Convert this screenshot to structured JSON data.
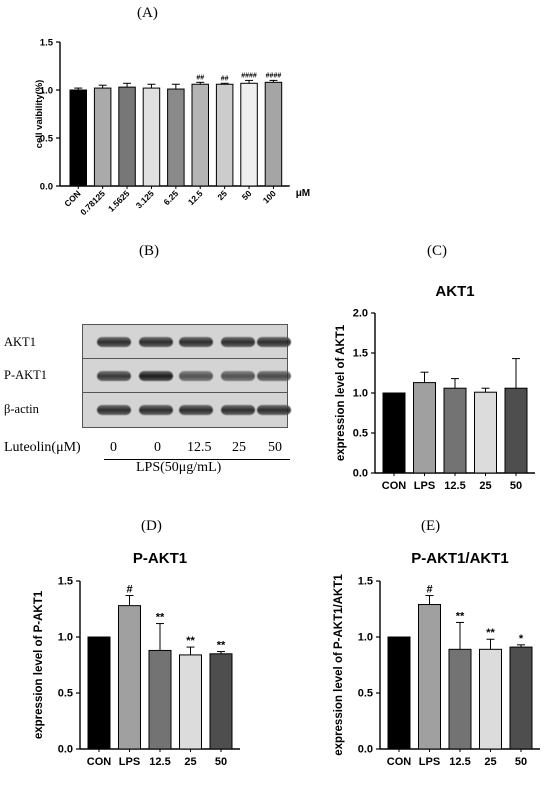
{
  "panel_labels": {
    "A": "(A)",
    "B": "(B)",
    "C": "(C)",
    "D": "(D)",
    "E": "(E)"
  },
  "blot": {
    "rows": [
      "AKT1",
      "P-AKT1",
      "β-actin"
    ],
    "treatment_label": "Luteolin(μM)",
    "lanes": [
      "0",
      "0",
      "12.5",
      "25",
      "50"
    ],
    "group_label": "LPS(50μg/mL)",
    "band_intensity": {
      "AKT1": [
        0.9,
        0.9,
        0.9,
        0.9,
        0.9
      ],
      "P-AKT1": [
        0.85,
        1.0,
        0.7,
        0.7,
        0.75
      ],
      "β-actin": [
        0.9,
        0.9,
        0.9,
        0.9,
        0.9
      ]
    }
  },
  "chart_data": [
    {
      "id": "A",
      "type": "bar",
      "title": "",
      "xlabel": "μM",
      "ylabel": "cell vaibility(%)",
      "categories": [
        "CON",
        "0.78125",
        "1.5625",
        "3.125",
        "6.25",
        "12.5",
        "25",
        "50",
        "100"
      ],
      "values": [
        1.0,
        1.02,
        1.03,
        1.02,
        1.01,
        1.06,
        1.06,
        1.07,
        1.08
      ],
      "errors": [
        0.02,
        0.03,
        0.04,
        0.04,
        0.05,
        0.02,
        0.01,
        0.03,
        0.02
      ],
      "annotations": [
        "",
        "",
        "",
        "",
        "",
        "##",
        "##",
        "####",
        "####"
      ],
      "colors": [
        "#000000",
        "#aaaaaa",
        "#777777",
        "#e0e0e0",
        "#8a8a8a",
        "#b4b4b4",
        "#cccccc",
        "#efefef",
        "#a5a5a5"
      ],
      "ylim": [
        0,
        1.5
      ],
      "yticks": [
        "0.0",
        "0.5",
        "1.0",
        "1.5"
      ],
      "grid": false,
      "xtick_rotation": -45
    },
    {
      "id": "C",
      "type": "bar",
      "title": "AKT1",
      "xlabel": "",
      "ylabel": "expression level of AKT1",
      "categories": [
        "CON",
        "LPS",
        "12.5",
        "25",
        "50"
      ],
      "values": [
        1.0,
        1.13,
        1.06,
        1.01,
        1.06
      ],
      "errors": [
        0.0,
        0.13,
        0.12,
        0.05,
        0.37
      ],
      "annotations": [
        "",
        "",
        "",
        "",
        ""
      ],
      "colors": [
        "#000000",
        "#a0a0a0",
        "#737373",
        "#dcdcdc",
        "#4e4e4e"
      ],
      "ylim": [
        0,
        2.0
      ],
      "yticks": [
        "0.0",
        "0.5",
        "1.0",
        "1.5",
        "2.0"
      ],
      "grid": false
    },
    {
      "id": "D",
      "type": "bar",
      "title": "P-AKT1",
      "xlabel": "",
      "ylabel": "expression level of P-AKT1",
      "categories": [
        "CON",
        "LPS",
        "12.5",
        "25",
        "50"
      ],
      "values": [
        1.0,
        1.28,
        0.88,
        0.84,
        0.85
      ],
      "errors": [
        0.0,
        0.09,
        0.24,
        0.07,
        0.02
      ],
      "annotations": [
        "",
        "#",
        "**",
        "**",
        "**"
      ],
      "colors": [
        "#000000",
        "#a0a0a0",
        "#737373",
        "#dcdcdc",
        "#4e4e4e"
      ],
      "ylim": [
        0,
        1.5
      ],
      "yticks": [
        "0.0",
        "0.5",
        "1.0",
        "1.5"
      ],
      "grid": false
    },
    {
      "id": "E",
      "type": "bar",
      "title": "P-AKT1/AKT1",
      "xlabel": "",
      "ylabel": "expression level of P-AKT1/AKT1",
      "categories": [
        "CON",
        "LPS",
        "12.5",
        "25",
        "50"
      ],
      "values": [
        1.0,
        1.29,
        0.89,
        0.89,
        0.91
      ],
      "errors": [
        0.0,
        0.08,
        0.24,
        0.09,
        0.02
      ],
      "annotations": [
        "",
        "#",
        "**",
        "**",
        "*"
      ],
      "colors": [
        "#000000",
        "#a0a0a0",
        "#737373",
        "#dcdcdc",
        "#4e4e4e"
      ],
      "ylim": [
        0,
        1.5
      ],
      "yticks": [
        "0.0",
        "0.5",
        "1.0",
        "1.5"
      ],
      "grid": false
    }
  ]
}
